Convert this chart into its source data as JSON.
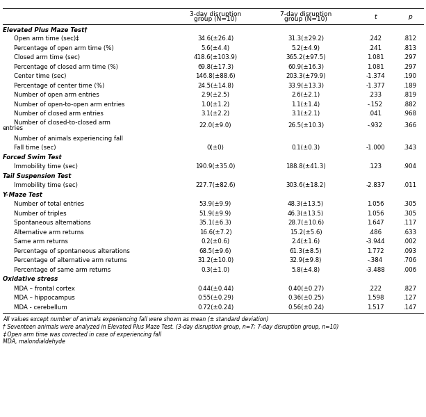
{
  "rows": [
    {
      "label": "Elevated Plus Maze Test†",
      "bold_italic": true,
      "indent": 0,
      "col3": "",
      "col4": "",
      "col5": "",
      "col6": "",
      "multiline": false
    },
    {
      "label": "Open arm time (sec)‡",
      "bold_italic": false,
      "indent": 1,
      "col3": "34.6(±26.4)",
      "col4": "31.3(±29.2)",
      "col5": ".242",
      "col6": ".812",
      "multiline": false
    },
    {
      "label": "Percentage of open arm time (%)",
      "bold_italic": false,
      "indent": 1,
      "col3": "5.6(±4.4)",
      "col4": "5.2(±4.9)",
      "col5": ".241",
      "col6": ".813",
      "multiline": false
    },
    {
      "label": "Closed arm time (sec)",
      "bold_italic": false,
      "indent": 1,
      "col3": "418.6(±103.9)",
      "col4": "365.2(±97.5)",
      "col5": "1.081",
      "col6": ".297",
      "multiline": false
    },
    {
      "label": "Percentage of closed arm time (%)",
      "bold_italic": false,
      "indent": 1,
      "col3": "69.8(±17.3)",
      "col4": "60.9(±16.3)",
      "col5": "1.081",
      "col6": ".297",
      "multiline": false
    },
    {
      "label": "Center time (sec)",
      "bold_italic": false,
      "indent": 1,
      "col3": "146.8(±88.6)",
      "col4": "203.3(±79.9)",
      "col5": "-1.374",
      "col6": ".190",
      "multiline": false
    },
    {
      "label": "Percentage of center time (%)",
      "bold_italic": false,
      "indent": 1,
      "col3": "24.5(±14.8)",
      "col4": "33.9(±13.3)",
      "col5": "-1.377",
      "col6": ".189",
      "multiline": false
    },
    {
      "label": "Number of open arm entries",
      "bold_italic": false,
      "indent": 1,
      "col3": "2.9(±2.5)",
      "col4": "2.6(±2.1)",
      "col5": ".233",
      "col6": ".819",
      "multiline": false
    },
    {
      "label": "Number of open-to-open arm entries",
      "bold_italic": false,
      "indent": 1,
      "col3": "1.0(±1.2)",
      "col4": "1.1(±1.4)",
      "col5": "-.152",
      "col6": ".882",
      "multiline": false
    },
    {
      "label": "Number of closed arm entries",
      "bold_italic": false,
      "indent": 1,
      "col3": "3.1(±2.2)",
      "col4": "3.1(±2.1)",
      "col5": ".041",
      "col6": ".968",
      "multiline": false
    },
    {
      "label": "Number of closed-to-closed arm",
      "label2": "entries",
      "bold_italic": false,
      "indent": 1,
      "col3": "22.0(±9.0)",
      "col4": "26.5(±10.3)",
      "col5": "-.932",
      "col6": ".366",
      "multiline": true
    },
    {
      "label": "Number of animals experiencing fall",
      "bold_italic": false,
      "indent": 1,
      "col3": "",
      "col4": "",
      "col5": "",
      "col6": "",
      "multiline": false
    },
    {
      "label": "Fall time (sec)",
      "bold_italic": false,
      "indent": 1,
      "col3": "0(±0)",
      "col4": "0.1(±0.3)",
      "col5": "-1.000",
      "col6": ".343",
      "multiline": false
    },
    {
      "label": "Forced Swim Test",
      "bold_italic": true,
      "indent": 0,
      "col3": "",
      "col4": "",
      "col5": "",
      "col6": "",
      "multiline": false
    },
    {
      "label": "Immobility time (sec)",
      "bold_italic": false,
      "indent": 1,
      "col3": "190.9(±35.0)",
      "col4": "188.8(±41.3)",
      "col5": ".123",
      "col6": ".904",
      "multiline": false
    },
    {
      "label": "Tail Suspension Test",
      "bold_italic": true,
      "indent": 0,
      "col3": "",
      "col4": "",
      "col5": "",
      "col6": "",
      "multiline": false
    },
    {
      "label": "Immobility time (sec)",
      "bold_italic": false,
      "indent": 1,
      "col3": "227.7(±82.6)",
      "col4": "303.6(±18.2)",
      "col5": "-2.837",
      "col6": ".011",
      "multiline": false
    },
    {
      "label": "Y-Maze Test",
      "bold_italic": true,
      "indent": 0,
      "col3": "",
      "col4": "",
      "col5": "",
      "col6": "",
      "multiline": false
    },
    {
      "label": "Number of total entries",
      "bold_italic": false,
      "indent": 1,
      "col3": "53.9(±9.9)",
      "col4": "48.3(±13.5)",
      "col5": "1.056",
      "col6": ".305",
      "multiline": false
    },
    {
      "label": "Number of triples",
      "bold_italic": false,
      "indent": 1,
      "col3": "51.9(±9.9)",
      "col4": "46.3(±13.5)",
      "col5": "1.056",
      "col6": ".305",
      "multiline": false
    },
    {
      "label": "Spontaneous alternations",
      "bold_italic": false,
      "indent": 1,
      "col3": "35.1(±6.3)",
      "col4": "28.7(±10.6)",
      "col5": "1.647",
      "col6": ".117",
      "multiline": false
    },
    {
      "label": "Alternative arm returns",
      "bold_italic": false,
      "indent": 1,
      "col3": "16.6(±7.2)",
      "col4": "15.2(±5.6)",
      "col5": ".486",
      "col6": ".633",
      "multiline": false
    },
    {
      "label": "Same arm returns",
      "bold_italic": false,
      "indent": 1,
      "col3": "0.2(±0.6)",
      "col4": "2.4(±1.6)",
      "col5": "-3.944",
      "col6": ".002",
      "multiline": false
    },
    {
      "label": "Percentage of spontaneous alterations",
      "bold_italic": false,
      "indent": 1,
      "col3": "68.5(±9.6)",
      "col4": "61.3(±8.5)",
      "col5": "1.772",
      "col6": ".093",
      "multiline": false
    },
    {
      "label": "Percentage of alternative arm returns",
      "bold_italic": false,
      "indent": 1,
      "col3": "31.2(±10.0)",
      "col4": "32.9(±9.8)",
      "col5": "-.384",
      "col6": ".706",
      "multiline": false
    },
    {
      "label": "Percentage of same arm returns",
      "bold_italic": false,
      "indent": 1,
      "col3": "0.3(±1.0)",
      "col4": "5.8(±4.8)",
      "col5": "-3.488",
      "col6": ".006",
      "multiline": false
    },
    {
      "label": "Oxidative stress",
      "bold_italic": true,
      "indent": 0,
      "col3": "",
      "col4": "",
      "col5": "",
      "col6": "",
      "multiline": false
    },
    {
      "label": "MDA – frontal cortex",
      "bold_italic": false,
      "indent": 1,
      "col3": "0.44(±0.44)",
      "col4": "0.40(±0.27)",
      "col5": ".222",
      "col6": ".827",
      "multiline": false
    },
    {
      "label": "MDA – hippocampus",
      "bold_italic": false,
      "indent": 1,
      "col3": "0.55(±0.29)",
      "col4": "0.36(±0.25)",
      "col5": "1.598",
      "col6": ".127",
      "multiline": false
    },
    {
      "label": "MDA - cerebellum",
      "bold_italic": false,
      "indent": 1,
      "col3": "0.72(±0.24)",
      "col4": "0.56(±0.24)",
      "col5": "1.517",
      "col6": ".147",
      "multiline": false
    }
  ],
  "footnotes": [
    "All values except number of animals experiencing fall were shown as mean (± standard deviation)",
    "† Seventeen animals were analyzed in Elevated Plus Maze Test. (3-day disruption group, n=7; 7-day disruption group, n=10)",
    "‡ Open arm time was corrected in case of experiencing fall",
    "MDA, malondialdehyde"
  ],
  "font_size": 6.2,
  "header_font_size": 6.5,
  "footnote_font_size": 5.6
}
